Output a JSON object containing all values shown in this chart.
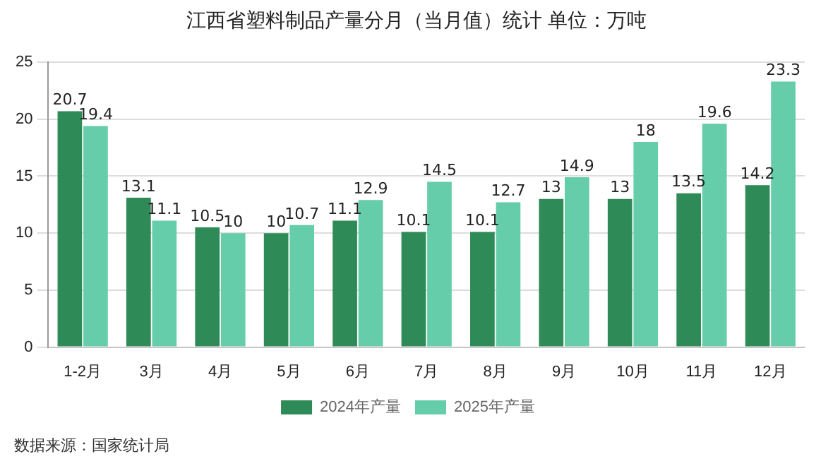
{
  "chart_data": {
    "type": "bar",
    "title": "江西省塑料制品产量分月（当月值）统计 单位：万吨",
    "categories": [
      "1-2月",
      "3月",
      "4月",
      "5月",
      "6月",
      "7月",
      "8月",
      "9月",
      "10月",
      "11月",
      "12月"
    ],
    "series": [
      {
        "name": "2024年产量",
        "color": "#2e8b57",
        "values": [
          20.7,
          13.1,
          10.5,
          10,
          11.1,
          10.1,
          10.1,
          13,
          13,
          13.5,
          14.2
        ]
      },
      {
        "name": "2025年产量",
        "color": "#66cdaa",
        "values": [
          19.4,
          11.1,
          10,
          10.7,
          12.9,
          14.5,
          12.7,
          14.9,
          18,
          19.6,
          23.3
        ]
      }
    ],
    "ylim": [
      0,
      25
    ],
    "yticks": [
      0,
      5,
      10,
      15,
      20,
      25
    ],
    "grid": "y",
    "legend": "bottom",
    "data_labels": true,
    "annotations": [
      "数据来源：国家统计局"
    ]
  }
}
